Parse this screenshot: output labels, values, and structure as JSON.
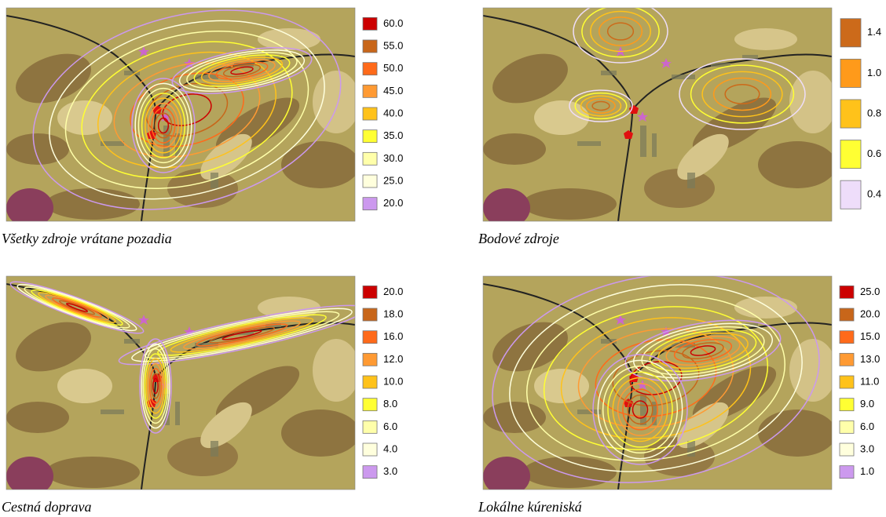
{
  "panels": [
    {
      "caption": "Všetky zdroje vrátane pozadia",
      "legend": [
        {
          "label": "60.0",
          "color": "#cc0000"
        },
        {
          "label": "55.0",
          "color": "#c8661a"
        },
        {
          "label": "50.0",
          "color": "#ff6a1a"
        },
        {
          "label": "45.0",
          "color": "#ff9a33"
        },
        {
          "label": "40.0",
          "color": "#ffc21a"
        },
        {
          "label": "35.0",
          "color": "#ffff33"
        },
        {
          "label": "30.0",
          "color": "#ffffaa"
        },
        {
          "label": "25.0",
          "color": "#ffffdd"
        },
        {
          "label": "20.0",
          "color": "#cc99ee"
        }
      ]
    },
    {
      "caption": "Bodové zdroje",
      "legend": [
        {
          "label": "1.4",
          "color": "#cc6a1a"
        },
        {
          "label": "1.0",
          "color": "#ff9a1a"
        },
        {
          "label": "0.8",
          "color": "#ffc21a"
        },
        {
          "label": "0.6",
          "color": "#ffff33"
        },
        {
          "label": "0.4",
          "color": "#eeddfa"
        }
      ]
    },
    {
      "caption": "Cestná doprava",
      "legend": [
        {
          "label": "20.0",
          "color": "#cc0000"
        },
        {
          "label": "18.0",
          "color": "#c8661a"
        },
        {
          "label": "16.0",
          "color": "#ff6a1a"
        },
        {
          "label": "12.0",
          "color": "#ff9a33"
        },
        {
          "label": "10.0",
          "color": "#ffc21a"
        },
        {
          "label": "8.0",
          "color": "#ffff33"
        },
        {
          "label": "6.0",
          "color": "#ffffaa"
        },
        {
          "label": "4.0",
          "color": "#ffffdd"
        },
        {
          "label": "3.0",
          "color": "#cc99ee"
        }
      ]
    },
    {
      "caption": "Lokálne kúreniská",
      "legend": [
        {
          "label": "25.0",
          "color": "#cc0000"
        },
        {
          "label": "20.0",
          "color": "#c8661a"
        },
        {
          "label": "15.0",
          "color": "#ff6a1a"
        },
        {
          "label": "13.0",
          "color": "#ff9a33"
        },
        {
          "label": "11.0",
          "color": "#ffc21a"
        },
        {
          "label": "9.0",
          "color": "#ffff33"
        },
        {
          "label": "6.0",
          "color": "#ffffaa"
        },
        {
          "label": "3.0",
          "color": "#ffffdd"
        },
        {
          "label": "1.0",
          "color": "#cc99ee"
        }
      ]
    }
  ]
}
